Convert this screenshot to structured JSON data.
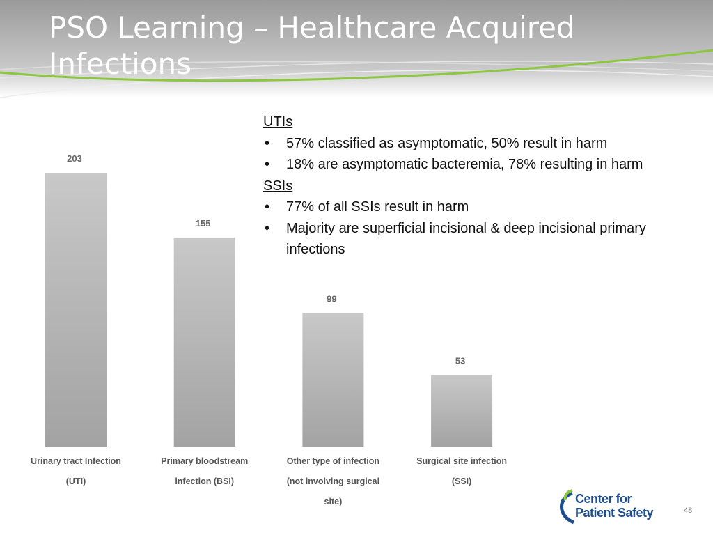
{
  "title": "PSO Learning – Healthcare Acquired Infections",
  "chart_data": {
    "type": "bar",
    "categories": [
      "Urinary tract Infection (UTI)",
      "Primary bloodstream infection (BSI)",
      "Other type of infection (not involving surgical site)",
      "Surgical site infection (SSI)"
    ],
    "values": [
      203,
      155,
      99,
      53
    ]
  },
  "notes": [
    {
      "heading": "UTIs",
      "bullets": [
        "57% classified as asymptomatic, 50% result in harm",
        "18% are asymptomatic bacteremia, 78% resulting in harm"
      ]
    },
    {
      "heading": "SSIs",
      "bullets": [
        "77% of all SSIs result in harm",
        "Majority are superficial incisional & deep incisional primary infections"
      ]
    }
  ],
  "logo": {
    "line1": "Center for",
    "line2": "Patient Safety"
  },
  "page_number": "48"
}
